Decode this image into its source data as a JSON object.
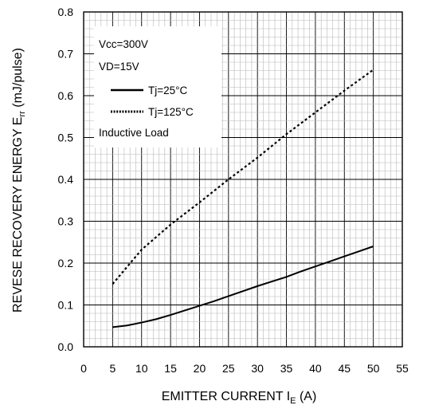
{
  "chart_data": {
    "type": "line",
    "xlabel": {
      "main": "EMITTER CURRENT I",
      "sub": "E",
      "tail": " (A)"
    },
    "ylabel": {
      "main": "REVESE RECOVERY ENERGY E",
      "sub": "rr",
      "tail": " (mJ/pulse)"
    },
    "xlim": [
      0,
      55
    ],
    "ylim": [
      0.0,
      0.8
    ],
    "xticks": [
      "0",
      "5",
      "10",
      "15",
      "20",
      "25",
      "30",
      "35",
      "40",
      "45",
      "50",
      "55"
    ],
    "yticks": [
      "0.0",
      "0.1",
      "0.2",
      "0.3",
      "0.4",
      "0.5",
      "0.6",
      "0.7",
      "0.8"
    ],
    "grid": true,
    "legend_placement": "top-left",
    "annotations": [
      "Vcc=300V",
      "VD=15V",
      "Inductive Load"
    ],
    "series": [
      {
        "name": "Tj=25°C",
        "style": "solid",
        "color": "#000000",
        "x": [
          5,
          7.5,
          10,
          12.5,
          15,
          17.5,
          20,
          22.5,
          25,
          27.5,
          30,
          32.5,
          35,
          37.5,
          40,
          42.5,
          45,
          47.5,
          50
        ],
        "y": [
          0.047,
          0.051,
          0.058,
          0.066,
          0.076,
          0.087,
          0.098,
          0.109,
          0.121,
          0.133,
          0.145,
          0.156,
          0.167,
          0.18,
          0.192,
          0.204,
          0.216,
          0.228,
          0.24
        ]
      },
      {
        "name": "Tj=125°C",
        "style": "dotted",
        "color": "#000000",
        "x": [
          5,
          10,
          15,
          20,
          25,
          30,
          35,
          40,
          45,
          50
        ],
        "y": [
          0.15,
          0.232,
          0.292,
          0.345,
          0.4,
          0.452,
          0.508,
          0.56,
          0.612,
          0.662
        ]
      }
    ]
  }
}
